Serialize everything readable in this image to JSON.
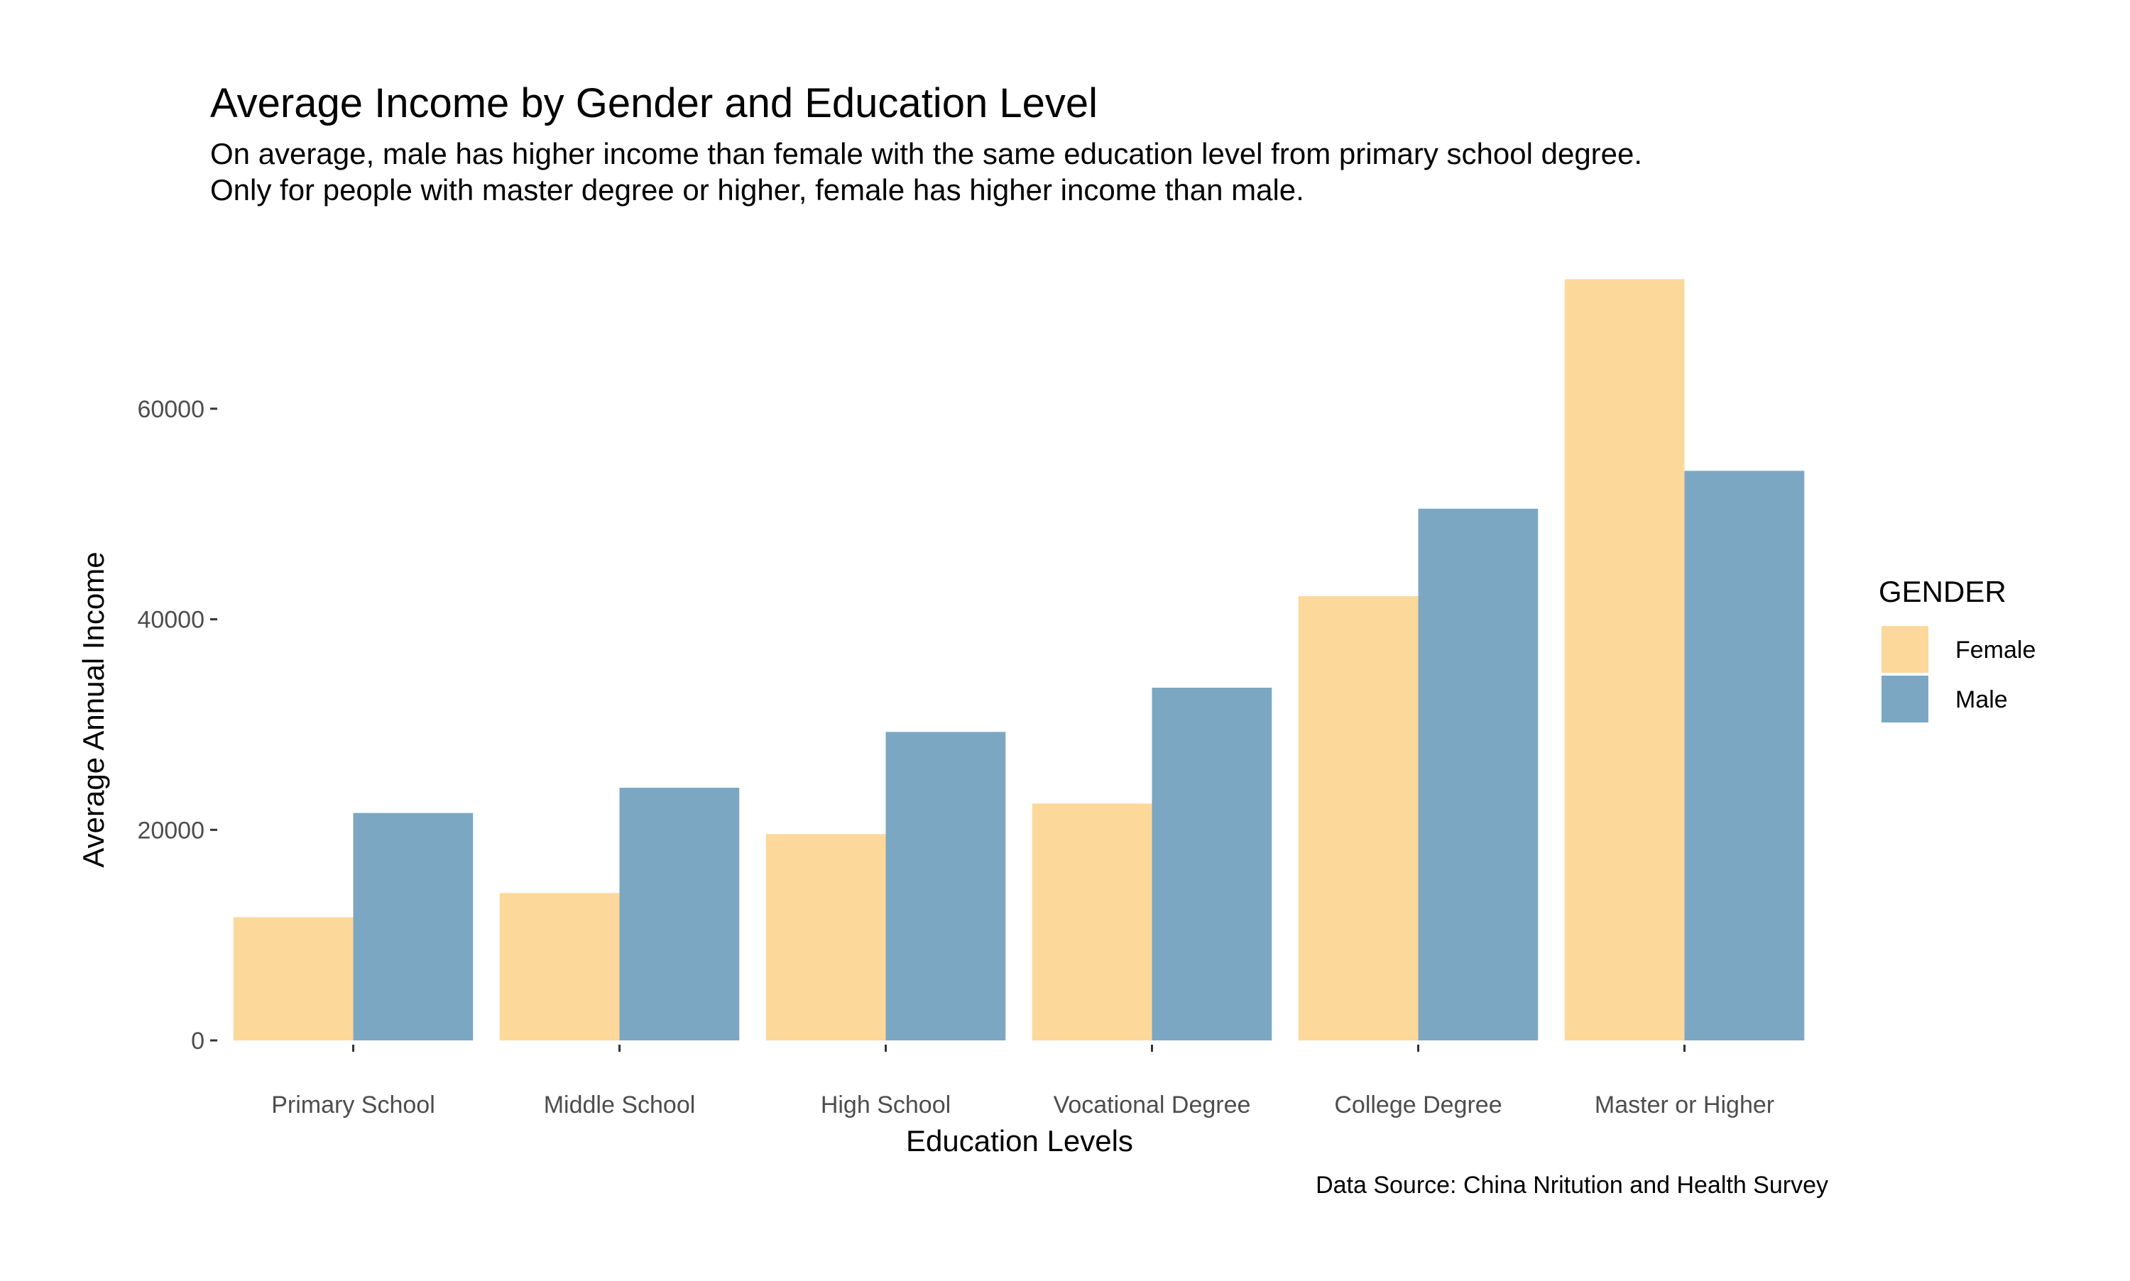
{
  "chart_data": {
    "type": "bar",
    "title": "Average Income by Gender and Education Level",
    "subtitle": [
      "On average, male has higher income than female with the same education level from primary school degree.",
      "Only for people with master degree or higher, female has higher income than male."
    ],
    "xlabel": "Education Levels",
    "ylabel": "Average Annual Income",
    "caption": "Data Source: China Nritution and Health Survey",
    "categories": [
      "Primary School",
      "Middle School",
      "High School",
      "Vocational Degree",
      "College Degree",
      "Master or Higher"
    ],
    "series": [
      {
        "name": "Female",
        "color": "#FDD89B",
        "values": [
          11700,
          14000,
          19600,
          22500,
          42200,
          72300
        ]
      },
      {
        "name": "Male",
        "color": "#7BA7C3",
        "values": [
          21600,
          24000,
          29300,
          33500,
          50500,
          54100
        ]
      }
    ],
    "y_ticks": [
      0,
      20000,
      40000,
      60000
    ],
    "y_tick_labels": [
      "0",
      "20000",
      "40000",
      "60000"
    ],
    "ylim": [
      0,
      75900
    ],
    "legend": {
      "title": "GENDER",
      "position": "right"
    },
    "grid": false
  }
}
